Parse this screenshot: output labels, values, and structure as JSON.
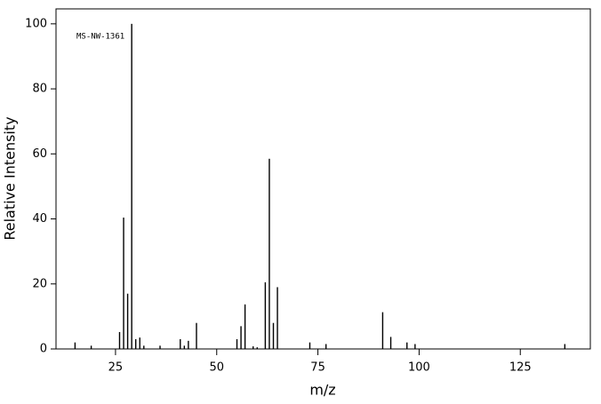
{
  "chart_data": {
    "type": "stem",
    "annotation": "MS-NW-1361",
    "xlabel": "m/z",
    "ylabel": "Relative Intensity",
    "x": [
      15,
      19,
      26,
      27,
      28,
      29,
      30,
      31,
      32,
      36,
      41,
      42,
      43,
      45,
      55,
      56,
      57,
      59,
      60,
      62,
      63,
      64,
      65,
      73,
      77,
      91,
      93,
      97,
      99,
      136
    ],
    "values": [
      2,
      1,
      5.2,
      40.4,
      17,
      100,
      3,
      3.5,
      1,
      1,
      3,
      1,
      2.5,
      8,
      3,
      7,
      13.7,
      0.8,
      0.5,
      20.5,
      58.5,
      8,
      19,
      2,
      1.5,
      11.3,
      3.7,
      2,
      1.5,
      1.5
    ],
    "color": "#000000",
    "xlim": [
      10.3,
      142.3
    ],
    "ylim": [
      0,
      104.6
    ],
    "xticks": [
      25,
      50,
      75,
      100,
      125
    ],
    "yticks": [
      0,
      20,
      40,
      60,
      80,
      100
    ]
  }
}
